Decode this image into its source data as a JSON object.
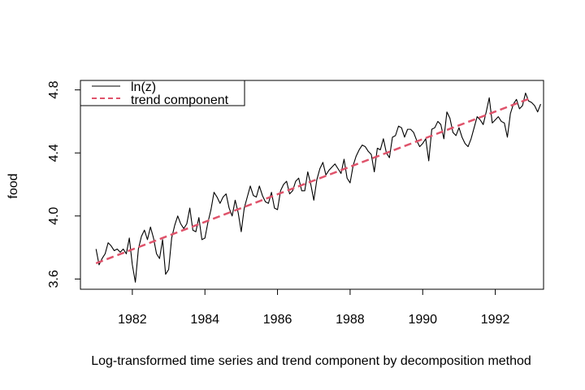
{
  "chart_data": {
    "type": "line",
    "xlabel": "Log-transformed time series and trend component by decomposition method",
    "ylabel": "food",
    "xlim": [
      1980.57,
      1993.33
    ],
    "ylim": [
      3.535,
      4.86
    ],
    "xticks": [
      1982,
      1984,
      1986,
      1988,
      1990,
      1992
    ],
    "yticks": [
      3.6,
      4.0,
      4.4,
      4.8
    ],
    "ytick_labels": [
      "3.6",
      "4.0",
      "4.4",
      "4.8"
    ],
    "legend": {
      "position": "top-left",
      "entries": [
        {
          "label": "ln(z)",
          "color": "#000000",
          "dash": "solid"
        },
        {
          "label": "trend component",
          "color": "#DF536B",
          "dash": "dashed"
        }
      ]
    },
    "series": [
      {
        "name": "ln(z)",
        "color": "#000000",
        "x_start": 1981.0,
        "step": 0.0833333,
        "values": [
          3.79,
          3.69,
          3.73,
          3.76,
          3.83,
          3.81,
          3.78,
          3.79,
          3.77,
          3.79,
          3.76,
          3.86,
          3.69,
          3.58,
          3.79,
          3.87,
          3.91,
          3.85,
          3.93,
          3.86,
          3.76,
          3.73,
          3.85,
          3.63,
          3.66,
          3.86,
          3.94,
          4.0,
          3.95,
          3.92,
          3.95,
          4.05,
          3.91,
          3.9,
          3.99,
          3.85,
          3.86,
          3.96,
          4.04,
          4.15,
          4.12,
          4.08,
          4.12,
          4.14,
          4.05,
          4.0,
          4.1,
          4.02,
          3.9,
          4.05,
          4.12,
          4.19,
          4.13,
          4.12,
          4.19,
          4.13,
          4.09,
          4.08,
          4.15,
          4.05,
          4.04,
          4.16,
          4.2,
          4.22,
          4.14,
          4.16,
          4.22,
          4.24,
          4.16,
          4.16,
          4.28,
          4.2,
          4.1,
          4.23,
          4.3,
          4.34,
          4.26,
          4.29,
          4.31,
          4.33,
          4.3,
          4.27,
          4.36,
          4.24,
          4.21,
          4.32,
          4.38,
          4.42,
          4.45,
          4.44,
          4.41,
          4.39,
          4.28,
          4.43,
          4.42,
          4.49,
          4.4,
          4.37,
          4.5,
          4.51,
          4.57,
          4.56,
          4.5,
          4.55,
          4.55,
          4.53,
          4.48,
          4.44,
          4.46,
          4.49,
          4.35,
          4.55,
          4.56,
          4.6,
          4.58,
          4.49,
          4.66,
          4.62,
          4.53,
          4.51,
          4.56,
          4.5,
          4.46,
          4.44,
          4.49,
          4.56,
          4.63,
          4.61,
          4.58,
          4.66,
          4.75,
          4.59,
          4.61,
          4.63,
          4.6,
          4.59,
          4.5,
          4.65,
          4.71,
          4.74,
          4.68,
          4.7,
          4.78,
          4.73,
          4.72,
          4.7,
          4.66,
          4.71
        ]
      },
      {
        "name": "trend component",
        "color": "#DF536B",
        "x": [
          1981.0,
          1993.0
        ],
        "values": [
          3.7,
          4.75
        ]
      }
    ]
  }
}
